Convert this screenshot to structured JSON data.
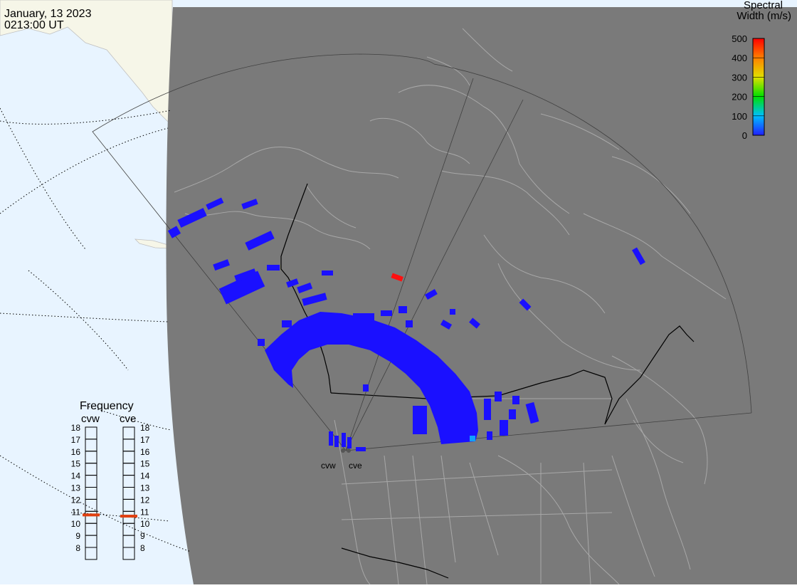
{
  "header": {
    "date": "January, 13 2023",
    "time": "0213:00 UT"
  },
  "colors": {
    "ocean": "#e8f4ff",
    "land_outside": "#f6f6e8",
    "night": "#7a7a7a",
    "coast": "#a8a8a8",
    "border": "#000000",
    "fov": "#404040",
    "scatter_low": "#1a10ff",
    "scatter_high": "#ff1010",
    "freq_marker": "#e04010"
  },
  "color_scale": {
    "title_line1": "Spectral",
    "title_line2": "Width (m/s)",
    "ticks": [
      "0",
      "100",
      "200",
      "300",
      "400",
      "500"
    ]
  },
  "radars": [
    {
      "code": "cvw",
      "frequency": 10.7
    },
    {
      "code": "cve",
      "frequency": 10.6
    }
  ],
  "frequency_panel": {
    "title": "Frequency",
    "ticks": [
      "18",
      "17",
      "16",
      "15",
      "14",
      "13",
      "12",
      "11",
      "10",
      "9",
      "8"
    ]
  }
}
